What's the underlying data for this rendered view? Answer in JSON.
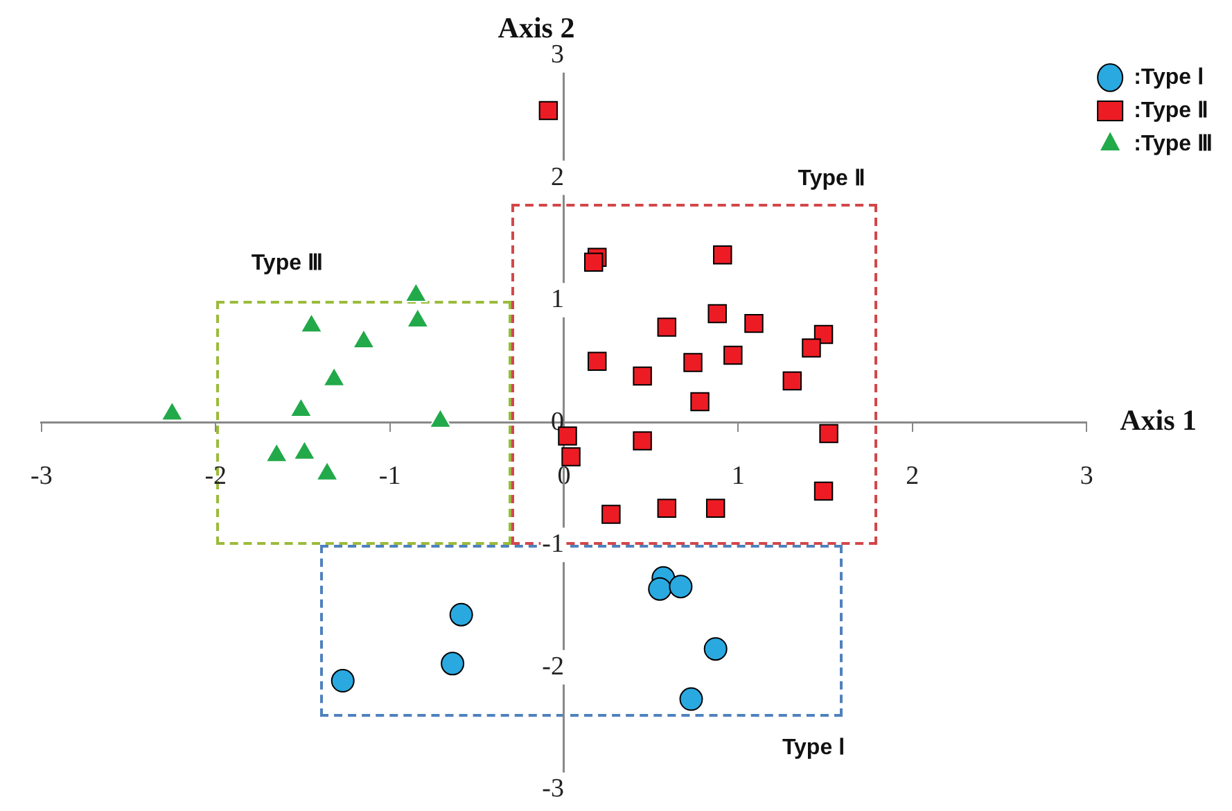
{
  "chart_data": {
    "type": "scatter",
    "xlabel": "Axis 1",
    "ylabel": "Axis 2",
    "xlim": [
      -3,
      3
    ],
    "ylim": [
      -3,
      3
    ],
    "xticks": [
      -3,
      -2,
      -1,
      0,
      1,
      2,
      3
    ],
    "yticks": [
      -3,
      -2,
      -1,
      0,
      1,
      2,
      3
    ],
    "grid": false,
    "legend": "top right",
    "series": [
      {
        "name": ":Type Ⅰ",
        "type": "scatter",
        "marker": "circle",
        "color": "#29a9e0",
        "x": [
          -1.27,
          -0.64,
          -0.59,
          0.57,
          0.55,
          0.67,
          0.87,
          0.73
        ],
        "values": [
          -2.11,
          -1.97,
          -1.57,
          -1.27,
          -1.36,
          -1.34,
          -1.85,
          -2.26
        ]
      },
      {
        "name": ":Type Ⅱ",
        "type": "scatter",
        "marker": "square",
        "color": "#ed1c24",
        "x": [
          -0.09,
          0.19,
          0.17,
          0.91,
          0.88,
          1.09,
          0.59,
          1.49,
          1.42,
          0.19,
          0.97,
          0.74,
          0.45,
          1.31,
          0.78,
          0.02,
          0.04,
          0.45,
          1.52,
          1.49,
          0.27,
          0.59,
          0.87
        ],
        "values": [
          2.55,
          1.35,
          1.31,
          1.37,
          0.89,
          0.81,
          0.78,
          0.72,
          0.61,
          0.5,
          0.55,
          0.49,
          0.38,
          0.34,
          0.17,
          -0.11,
          -0.28,
          -0.15,
          -0.09,
          -0.56,
          -0.75,
          -0.7,
          -0.7
        ]
      },
      {
        "name": ":Type Ⅲ",
        "type": "scatter",
        "marker": "triangle",
        "color": "#22a94a",
        "x": [
          -2.25,
          -1.45,
          -1.15,
          -0.85,
          -0.84,
          -1.32,
          -1.51,
          -0.71,
          -1.65,
          -1.49,
          -1.36
        ],
        "values": [
          0.07,
          0.79,
          0.66,
          1.04,
          0.83,
          0.35,
          0.1,
          0.01,
          -0.27,
          -0.25,
          -0.42
        ]
      }
    ],
    "annotations": [
      "Type Ⅲ",
      "Type Ⅱ",
      "Type Ⅰ"
    ]
  }
}
